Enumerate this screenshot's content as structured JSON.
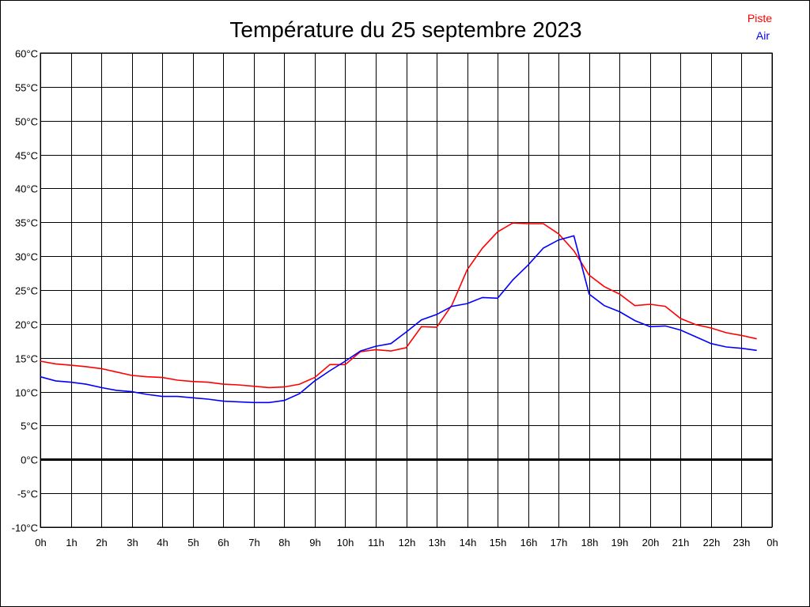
{
  "chart_data": {
    "type": "line",
    "title": "Température du 25 septembre 2023",
    "xlabel": "",
    "ylabel": "",
    "xlim": [
      0,
      24
    ],
    "ylim": [
      -10,
      60
    ],
    "grid": true,
    "legend_position": "top-right",
    "x_tick_labels": [
      "0h",
      "1h",
      "2h",
      "3h",
      "4h",
      "5h",
      "6h",
      "7h",
      "8h",
      "9h",
      "10h",
      "11h",
      "12h",
      "13h",
      "14h",
      "15h",
      "16h",
      "17h",
      "18h",
      "19h",
      "20h",
      "21h",
      "22h",
      "23h",
      "0h"
    ],
    "y_ticks": [
      -10,
      -5,
      0,
      5,
      10,
      15,
      20,
      25,
      30,
      35,
      40,
      45,
      50,
      55,
      60
    ],
    "y_tick_labels": [
      "-10°C",
      "-5°C",
      "0°C",
      "5°C",
      "10°C",
      "15°C",
      "20°C",
      "25°C",
      "30°C",
      "35°C",
      "40°C",
      "45°C",
      "50°C",
      "55°C",
      "60°C"
    ],
    "x": [
      0,
      0.5,
      1,
      1.5,
      2,
      2.5,
      3,
      3.5,
      4,
      4.5,
      5,
      5.5,
      6,
      6.5,
      7,
      7.5,
      8,
      8.5,
      9,
      9.5,
      10,
      10.5,
      11,
      11.5,
      12,
      12.5,
      13,
      13.5,
      14,
      14.5,
      15,
      15.5,
      16,
      16.5,
      17,
      17.5,
      18,
      18.5,
      19,
      19.5,
      20,
      20.5,
      21,
      21.5,
      22,
      22.5,
      23,
      23.5
    ],
    "series": [
      {
        "name": "Piste",
        "color": "#ff0000",
        "values": [
          14.5,
          14.1,
          13.9,
          13.7,
          13.4,
          12.9,
          12.4,
          12.2,
          12.1,
          11.7,
          11.5,
          11.4,
          11.1,
          11.0,
          10.8,
          10.6,
          10.7,
          11.1,
          12.1,
          14.0,
          14.0,
          15.9,
          16.2,
          16.0,
          16.5,
          19.6,
          19.5,
          22.8,
          28.0,
          31.2,
          33.6,
          34.9,
          34.8,
          34.8,
          33.3,
          30.8,
          27.2,
          25.5,
          24.4,
          22.7,
          22.9,
          22.6,
          20.8,
          19.9,
          19.4,
          18.7,
          18.3,
          17.8
        ]
      },
      {
        "name": "Air",
        "color": "#0000ff",
        "values": [
          12.2,
          11.6,
          11.4,
          11.1,
          10.6,
          10.2,
          10.0,
          9.6,
          9.3,
          9.3,
          9.1,
          8.9,
          8.6,
          8.5,
          8.4,
          8.4,
          8.7,
          9.7,
          11.6,
          13.1,
          14.5,
          16.0,
          16.7,
          17.1,
          18.8,
          20.6,
          21.4,
          22.6,
          23.0,
          23.9,
          23.8,
          26.5,
          28.7,
          31.2,
          32.4,
          33.0,
          24.4,
          22.7,
          21.8,
          20.5,
          19.6,
          19.7,
          19.1,
          18.1,
          17.1,
          16.6,
          16.4,
          16.1
        ]
      }
    ]
  }
}
